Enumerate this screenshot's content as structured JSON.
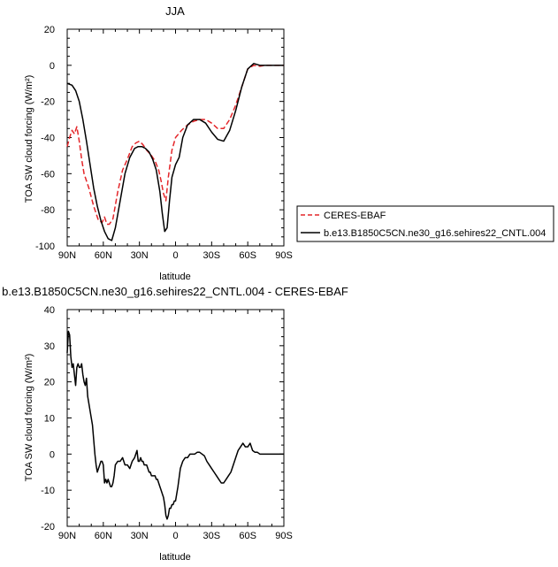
{
  "chart_data": [
    {
      "type": "line",
      "title": "JJA",
      "xlabel": "latitude",
      "ylabel": "TOA SW cloud forcing (W/m²)",
      "xlim": [
        90,
        -90
      ],
      "ylim": [
        -100,
        20
      ],
      "xticks": [
        90,
        60,
        30,
        0,
        -30,
        -60,
        -90
      ],
      "xtick_labels": [
        "90N",
        "60N",
        "30N",
        "0",
        "30S",
        "60S",
        "90S"
      ],
      "yticks": [
        -100,
        -80,
        -60,
        -40,
        -20,
        0,
        20
      ],
      "ytick_labels": [
        "-100",
        "-80",
        "-60",
        "-40",
        "-20",
        "0",
        "20"
      ],
      "legend": {
        "placement": "right",
        "entries": [
          "CERES-EBAF",
          "b.e13.B1850C5CN.ne30_g16.sehires22_CNTL.004"
        ]
      },
      "series": [
        {
          "name": "CERES-EBAF",
          "color": "#e4262a",
          "dash": true,
          "x": [
            90,
            88,
            86,
            84,
            82,
            80,
            78,
            76,
            72,
            68,
            64,
            61,
            59,
            57,
            55,
            52,
            48,
            44,
            40,
            36,
            33,
            30,
            27,
            24,
            20,
            17,
            14,
            12,
            10,
            8,
            6,
            3,
            0,
            -5,
            -10,
            -15,
            -20,
            -25,
            -30,
            -35,
            -40,
            -45,
            -50,
            -55,
            -60,
            -65,
            -70,
            -75,
            -80,
            -85,
            -90
          ],
          "y": [
            -45,
            -40,
            -36,
            -38,
            -34,
            -42,
            -52,
            -60,
            -68,
            -78,
            -86,
            -87,
            -84,
            -88,
            -88,
            -85,
            -70,
            -58,
            -52,
            -45,
            -43,
            -42,
            -44,
            -47,
            -50,
            -53,
            -58,
            -64,
            -71,
            -75,
            -62,
            -47,
            -40,
            -36,
            -33,
            -31,
            -30,
            -30,
            -32,
            -35,
            -35,
            -30,
            -22,
            -12,
            -2,
            0,
            -0.5,
            0,
            0,
            0,
            0
          ]
        },
        {
          "name": "b.e13.B1850C5CN.ne30_g16.sehires22_CNTL.004",
          "color": "#000000",
          "dash": false,
          "x": [
            90,
            86,
            83,
            80,
            77,
            74,
            71,
            68,
            65,
            62,
            59,
            56,
            53,
            50,
            46,
            42,
            38,
            34,
            31,
            28,
            25,
            22,
            19,
            16,
            13,
            11,
            9,
            7,
            5,
            3,
            0,
            -3,
            -6,
            -10,
            -15,
            -20,
            -25,
            -30,
            -35,
            -40,
            -45,
            -50,
            -55,
            -60,
            -65,
            -70,
            -75,
            -80,
            -85,
            -90
          ],
          "y": [
            -10,
            -11,
            -14,
            -20,
            -30,
            -42,
            -55,
            -68,
            -78,
            -86,
            -92,
            -96,
            -97,
            -90,
            -75,
            -60,
            -51,
            -46,
            -45,
            -45,
            -46,
            -48,
            -52,
            -58,
            -70,
            -82,
            -92,
            -90,
            -75,
            -62,
            -55,
            -51,
            -40,
            -33,
            -30,
            -30,
            -32,
            -37,
            -41,
            -42,
            -36,
            -25,
            -12,
            -2,
            1,
            0,
            0,
            0,
            0,
            0
          ]
        }
      ]
    },
    {
      "type": "line",
      "title": "b.e13.B1850C5CN.ne30_g16.sehires22_CNTL.004 - CERES-EBAF",
      "xlabel": "latitude",
      "ylabel": "TOA SW cloud forcing (W/m²)",
      "xlim": [
        90,
        -90
      ],
      "ylim": [
        -20,
        40
      ],
      "xticks": [
        90,
        60,
        30,
        0,
        -30,
        -60,
        -90
      ],
      "xtick_labels": [
        "90N",
        "60N",
        "30N",
        "0",
        "30S",
        "60S",
        "90S"
      ],
      "yticks": [
        -20,
        -10,
        0,
        10,
        20,
        30,
        40
      ],
      "ytick_labels": [
        "-20",
        "-10",
        "0",
        "10",
        "20",
        "30",
        "40"
      ],
      "series": [
        {
          "color": "#000000",
          "dash": false,
          "x": [
            90,
            89,
            88,
            87,
            86,
            85,
            84,
            83,
            82,
            81,
            80,
            79,
            78,
            77,
            76,
            75,
            74,
            73,
            72,
            71,
            70,
            69,
            68,
            67,
            66,
            65,
            64,
            63,
            62,
            61,
            60,
            59,
            58,
            57,
            56,
            55,
            54,
            53,
            52,
            51,
            50,
            48,
            46,
            44,
            42,
            40,
            38,
            36,
            34,
            32,
            31,
            30,
            29,
            28,
            27,
            26,
            25,
            24,
            23,
            22,
            21,
            20,
            19,
            18,
            17,
            16,
            15,
            14,
            13,
            12,
            11,
            10,
            9,
            8,
            7,
            6,
            5,
            4,
            3,
            2,
            1,
            0,
            -2,
            -4,
            -6,
            -8,
            -10,
            -12,
            -14,
            -16,
            -18,
            -20,
            -22,
            -24,
            -26,
            -28,
            -30,
            -32,
            -34,
            -36,
            -38,
            -40,
            -42,
            -44,
            -46,
            -48,
            -50,
            -52,
            -54,
            -56,
            -58,
            -60,
            -62,
            -64,
            -66,
            -68,
            -70,
            -72,
            -74,
            -76,
            -78,
            -80,
            -82,
            -84,
            -86,
            -88,
            -90
          ],
          "y": [
            28,
            34,
            33,
            27,
            24,
            25,
            22,
            19,
            24,
            25,
            24,
            24,
            25,
            22,
            20,
            19,
            21,
            16,
            14,
            12,
            10,
            8,
            4,
            0,
            -3,
            -5,
            -4,
            -3,
            -2,
            -2,
            -3,
            -8,
            -7,
            -8,
            -7,
            -8,
            -9,
            -9,
            -8,
            -6,
            -3,
            -2,
            -2,
            -1,
            -3,
            -3,
            -4,
            -2,
            -1,
            1,
            -2,
            -2,
            -1,
            -2,
            -2,
            -3,
            -3,
            -3,
            -4,
            -5,
            -5,
            -6,
            -6,
            -6,
            -6,
            -7,
            -7,
            -8,
            -9,
            -10,
            -11,
            -12,
            -14,
            -17,
            -18,
            -17,
            -15,
            -15,
            -14,
            -14,
            -13,
            -13,
            -9,
            -4,
            -2,
            -1,
            -1,
            0,
            0,
            0,
            0.5,
            0.5,
            0,
            -0.5,
            -2,
            -3,
            -4,
            -5,
            -6,
            -7,
            -8,
            -8,
            -7,
            -6,
            -5,
            -3,
            -1,
            1,
            2,
            3,
            2,
            2,
            3,
            1,
            0.5,
            0.5,
            0,
            0,
            0,
            0,
            0,
            0,
            0,
            0,
            0,
            0,
            0
          ]
        }
      ]
    }
  ]
}
